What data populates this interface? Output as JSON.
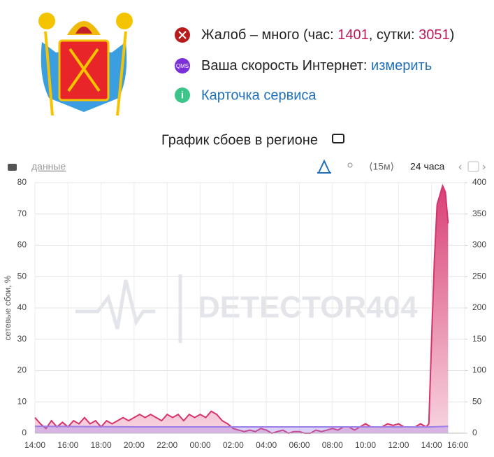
{
  "header": {
    "complaints": {
      "text": "Жалоб – много (час: ",
      "hour": 1401,
      "sep": ", сутки: ",
      "day": 3051,
      "end": ")"
    },
    "speed": {
      "icon": "QMS",
      "text": "Ваша скорость Интернет: ",
      "link": "измерить"
    },
    "card": "Карточка сервиса",
    "title": "График сбоев в регионе"
  },
  "toolbar": {
    "data": "данные",
    "interval": "⟨15м⟩",
    "period": "24 часа"
  },
  "chart_data": {
    "type": "area",
    "watermark": "DETECTOR404",
    "ylabel": "сетевые сбои, %",
    "xlim": [
      0,
      1560
    ],
    "xticks": [
      {
        "value": 0,
        "label": "14:00"
      },
      {
        "value": 120,
        "label": "16:00"
      },
      {
        "value": 240,
        "label": "18:00"
      },
      {
        "value": 360,
        "label": "20:00"
      },
      {
        "value": 480,
        "label": "22:00"
      },
      {
        "value": 600,
        "label": "00:00"
      },
      {
        "value": 720,
        "label": "02:00"
      },
      {
        "value": 840,
        "label": "04:00"
      },
      {
        "value": 960,
        "label": "06:00"
      },
      {
        "value": 1080,
        "label": "08:00"
      },
      {
        "value": 1200,
        "label": "10:00"
      },
      {
        "value": 1320,
        "label": "12:00"
      },
      {
        "value": 1440,
        "label": "14:00"
      },
      {
        "value": 1560,
        "label": "16:00"
      }
    ],
    "ylim": [
      0,
      80
    ],
    "yticks": [
      0,
      10,
      20,
      30,
      40,
      50,
      60,
      70,
      80
    ],
    "y2lim": [
      0,
      400
    ],
    "y2ticks": [
      0,
      50,
      100,
      150,
      200,
      250,
      300,
      350,
      400
    ],
    "grid": true,
    "series": [
      {
        "color": "#d6336c",
        "x": [
          0,
          20,
          40,
          60,
          80,
          100,
          120,
          140,
          160,
          180,
          200,
          220,
          240,
          260,
          280,
          300,
          320,
          340,
          360,
          380,
          400,
          420,
          440,
          460,
          480,
          500,
          520,
          540,
          560,
          580,
          600,
          620,
          640,
          660,
          680,
          700,
          720,
          740,
          760,
          780,
          800,
          820,
          840,
          860,
          880,
          900,
          920,
          940,
          960,
          980,
          1000,
          1020,
          1040,
          1060,
          1080,
          1100,
          1120,
          1140,
          1160,
          1180,
          1200,
          1220,
          1240,
          1260,
          1280,
          1300,
          1320,
          1340,
          1360,
          1380,
          1400,
          1420,
          1430,
          1440,
          1450,
          1460,
          1470,
          1480,
          1490,
          1500
        ],
        "values": [
          5,
          3,
          1.5,
          4,
          2,
          3.5,
          2,
          4,
          3,
          5,
          3,
          4,
          2,
          4,
          3,
          4,
          5,
          4,
          5,
          6,
          5,
          6,
          5,
          4,
          6,
          5,
          6,
          4,
          6,
          5,
          6,
          5,
          7,
          6,
          4,
          3,
          1.5,
          1,
          0.5,
          1,
          0.5,
          1.5,
          1,
          0,
          0.5,
          1,
          0,
          0.5,
          0.5,
          0,
          0,
          1,
          0.5,
          1,
          1.5,
          1,
          2,
          2,
          1,
          2,
          3,
          2,
          2,
          2,
          3,
          2.5,
          3,
          2,
          2,
          2,
          3,
          2,
          3,
          30,
          55,
          73,
          76,
          79,
          77,
          67
        ]
      },
      {
        "color": "#9b7ee8",
        "x": [
          0,
          360,
          720,
          1080,
          1440,
          1500
        ],
        "values": [
          2.2,
          2,
          2,
          2,
          2,
          2.2
        ]
      }
    ]
  }
}
